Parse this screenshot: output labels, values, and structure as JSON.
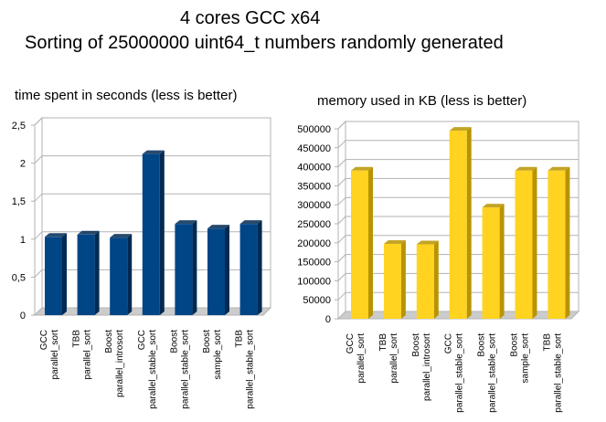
{
  "title_line1": "4 cores GCC x64",
  "title_line2": "Sorting of 25000000 uint64_t numbers randomly generated",
  "chart_data": [
    {
      "type": "bar",
      "title": "time spent in seconds (less is better)",
      "categories": [
        [
          "GCC",
          "parallel_sort"
        ],
        [
          "TBB",
          "parallel_sort"
        ],
        [
          "Boost",
          "parallel_introsort"
        ],
        [
          "GCC",
          "parallel_stable_sort"
        ],
        [
          "Boost",
          "parallel_stable_sort"
        ],
        [
          "Boost",
          "sample_sort"
        ],
        [
          "TBB",
          "parallel_stable_sort"
        ]
      ],
      "values": [
        1.03,
        1.06,
        1.02,
        2.12,
        1.2,
        1.14,
        1.2
      ],
      "ylim": [
        0,
        2.5
      ],
      "yticks": [
        0,
        0.5,
        1,
        1.5,
        2,
        2.5
      ],
      "ytick_labels": [
        "0",
        "0,5",
        "1",
        "1,5",
        "2",
        "2,5"
      ],
      "grid": true,
      "color": "#004586",
      "color_dark": "#002a52"
    },
    {
      "type": "bar",
      "title": "memory used in KB (less is better)",
      "categories": [
        [
          "GCC",
          "parallel_sort"
        ],
        [
          "TBB",
          "parallel_sort"
        ],
        [
          "Boost",
          "parallel_introsort"
        ],
        [
          "GCC",
          "parallel_stable_sort"
        ],
        [
          "Boost",
          "parallel_stable_sort"
        ],
        [
          "Boost",
          "sample_sort"
        ],
        [
          "TBB",
          "parallel_stable_sort"
        ]
      ],
      "values": [
        390000,
        197000,
        196000,
        495000,
        293000,
        390000,
        390000
      ],
      "ylim": [
        0,
        500000
      ],
      "yticks": [
        0,
        50000,
        100000,
        150000,
        200000,
        250000,
        300000,
        350000,
        400000,
        450000,
        500000
      ],
      "ytick_labels": [
        "0",
        "50000",
        "100000",
        "150000",
        "200000",
        "250000",
        "300000",
        "350000",
        "400000",
        "450000",
        "500000"
      ],
      "grid": true,
      "color": "#ffd320",
      "color_dark": "#b89400"
    }
  ]
}
